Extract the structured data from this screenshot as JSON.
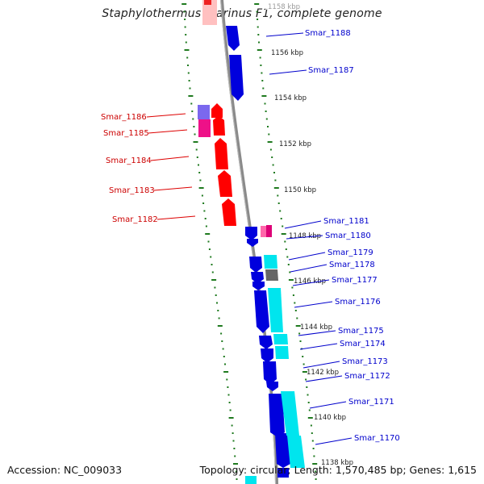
{
  "title": "Staphylothermus marinus F1, complete genome",
  "footer": {
    "accession": "Accession: NC_009033",
    "summary": "Topology: circular; Length: 1,570,485 bp; Genes: 1,615"
  },
  "colors": {
    "backbone": "#8a8a8a",
    "dots": "#1f7a1f",
    "forward_gene": "#ff0000",
    "reverse_gene": "#0000dd",
    "cyan_feature": "#00e5ee",
    "magenta_feature": "#ee1188",
    "grey_feature": "#666666",
    "purple_feature": "#7b68ee",
    "forward_label": "#cc0000",
    "reverse_label": "#0000cc",
    "tick_label": "#222222"
  },
  "ticks": [
    "1158 kbp",
    "1156 kbp",
    "1154 kbp",
    "1152 kbp",
    "1150 kbp",
    "1148 kbp",
    "1146 kbp",
    "1144 kbp",
    "1142 kbp",
    "1140 kbp",
    "1138 kbp"
  ],
  "forward_labels": [
    "Smar_1186",
    "Smar_1185",
    "Smar_1184",
    "Smar_1183",
    "Smar_1182"
  ],
  "reverse_labels": [
    "Smar_1188",
    "Smar_1187",
    "Smar_1181",
    "Smar_1180",
    "Smar_1179",
    "Smar_1178",
    "Smar_1177",
    "Smar_1176",
    "Smar_1175",
    "Smar_1174",
    "Smar_1173",
    "Smar_1172",
    "Smar_1171",
    "Smar_1170"
  ]
}
